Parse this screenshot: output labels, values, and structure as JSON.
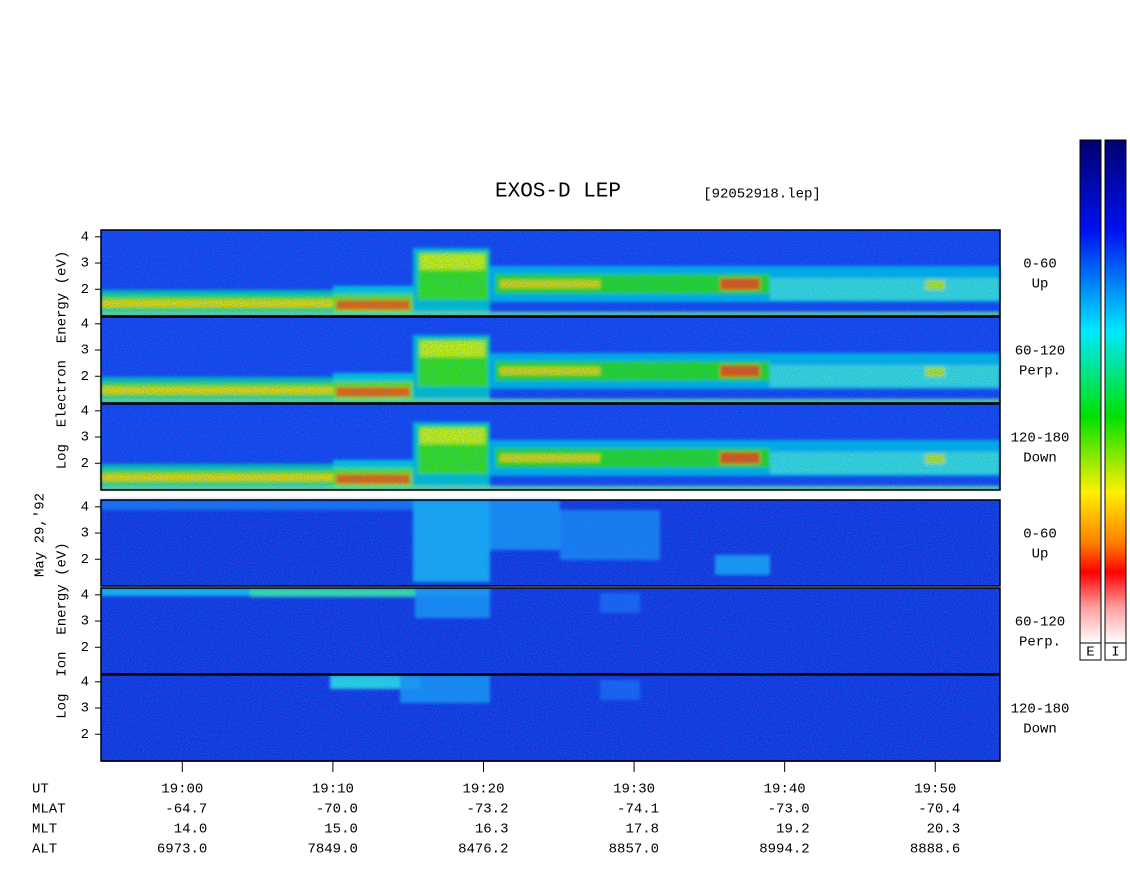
{
  "chart_data": {
    "type": "spectrogram",
    "title": "EXOS-D LEP",
    "file": "[92052918.lep]",
    "date": "May 29,'92",
    "xlim": [
      1134.6,
      1194.3
    ],
    "xticks": [
      {
        "value": 1140,
        "label": "19:00"
      },
      {
        "value": 1150,
        "label": "19:10"
      },
      {
        "value": 1160,
        "label": "19:20"
      },
      {
        "value": 1170,
        "label": "19:30"
      },
      {
        "value": 1180,
        "label": "19:40"
      },
      {
        "value": 1190,
        "label": "19:50"
      }
    ],
    "ylim": [
      0.98,
      4.26
    ],
    "yticks": [
      2,
      3,
      4
    ],
    "groups": [
      {
        "ylabel": "Log  Electron  Energy (eV)",
        "panels": [
          {
            "pitch": "0-60",
            "direction": "Up"
          },
          {
            "pitch": "60-120",
            "direction": "Perp."
          },
          {
            "pitch": "120-180",
            "direction": "Down"
          }
        ]
      },
      {
        "ylabel": "Log  Ion  Energy (eV)",
        "panels": [
          {
            "pitch": "0-60",
            "direction": "Up"
          },
          {
            "pitch": "60-120",
            "direction": "Perp."
          },
          {
            "pitch": "120-180",
            "direction": "Down"
          }
        ]
      }
    ],
    "orbit": {
      "labels": [
        "UT",
        "MLAT",
        "MLT",
        "ALT"
      ],
      "rows": [
        [
          "-64.7",
          "-70.0",
          "-73.2",
          "-74.1",
          "-73.0",
          "-70.4"
        ],
        [
          "14.0",
          "15.0",
          "16.3",
          "17.8",
          "19.2",
          "20.3"
        ],
        [
          "6973.0",
          "7849.0",
          "8476.2",
          "8857.0",
          "8994.2",
          "8888.6"
        ]
      ]
    },
    "colorbar": {
      "labels": [
        "E",
        "I"
      ]
    }
  }
}
